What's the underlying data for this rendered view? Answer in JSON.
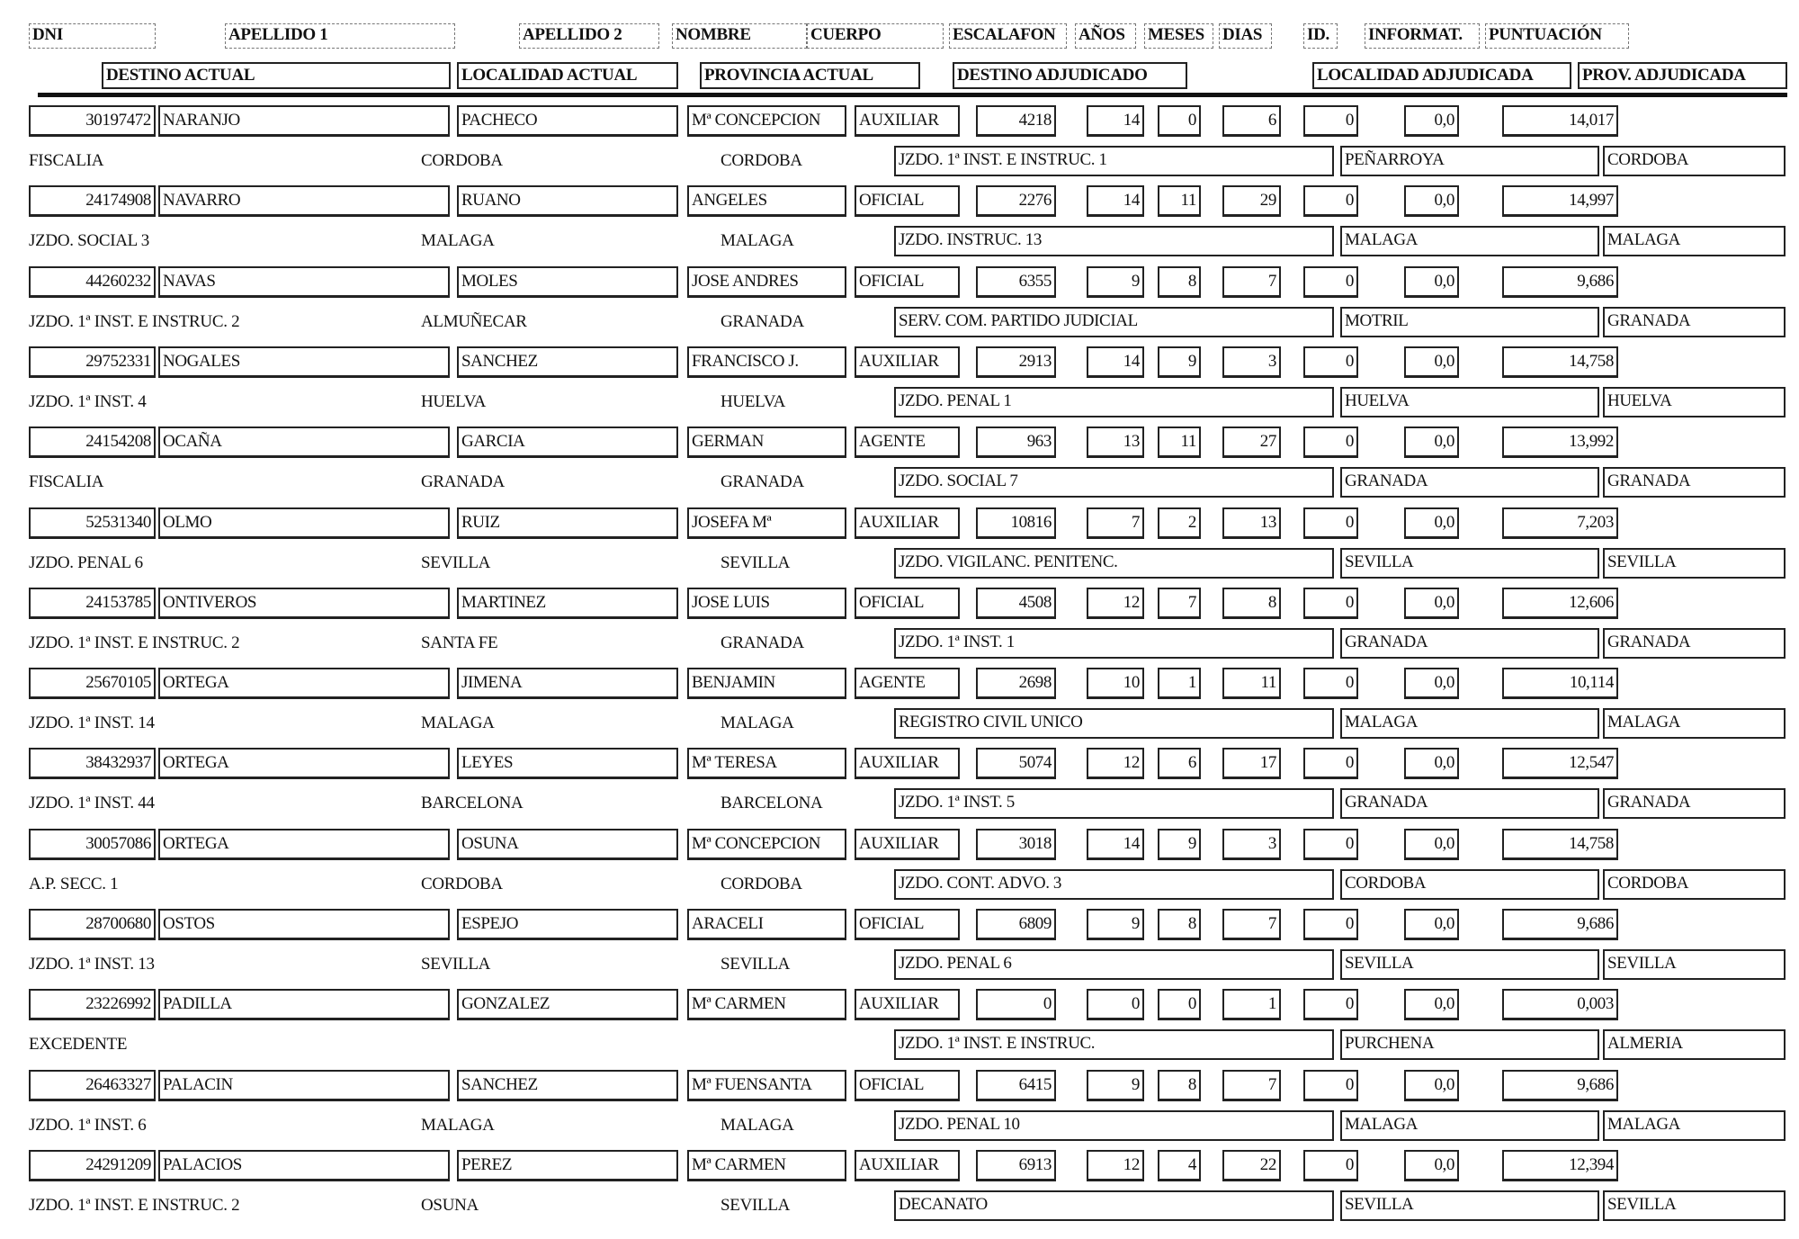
{
  "headers": {
    "row1": {
      "dni": "DNI",
      "apellido1": "APELLIDO 1",
      "apellido2": "APELLIDO 2",
      "nombre": "NOMBRE",
      "cuerpo": "CUERPO",
      "escalafon": "ESCALAFON",
      "anos": "AÑOS",
      "meses": "MESES",
      "dias": "DIAS",
      "id": "ID.",
      "informat": "INFORMAT.",
      "puntuacion": "PUNTUACIÓN"
    },
    "row2": {
      "destino_actual": "DESTINO ACTUAL",
      "localidad_actual": "LOCALIDAD ACTUAL",
      "provincia_actual": "PROVINCIA ACTUAL",
      "destino_adjudicado": "DESTINO ADJUDICADO",
      "localidad_adjudicada": "LOCALIDAD ADJUDICADA",
      "prov_adjudicada": "PROV. ADJUDICADA"
    }
  },
  "records": [
    {
      "dni": "30197472",
      "apellido1": "NARANJO",
      "apellido2": "PACHECO",
      "nombre": "Mª CONCEPCION",
      "cuerpo": "AUXILIAR",
      "escalafon": "4218",
      "anos": "14",
      "meses": "0",
      "dias": "6",
      "id": "0",
      "informat": "0,0",
      "puntuacion": "14,017",
      "destino_actual": "FISCALIA",
      "localidad_actual": "CORDOBA",
      "provincia_actual": "CORDOBA",
      "destino_adjudicado": "JZDO. 1ª INST. E INSTRUC. 1",
      "localidad_adjudicada": "PEÑARROYA",
      "prov_adjudicada": "CORDOBA"
    },
    {
      "dni": "24174908",
      "apellido1": "NAVARRO",
      "apellido2": "RUANO",
      "nombre": "ANGELES",
      "cuerpo": "OFICIAL",
      "escalafon": "2276",
      "anos": "14",
      "meses": "11",
      "dias": "29",
      "id": "0",
      "informat": "0,0",
      "puntuacion": "14,997",
      "destino_actual": "JZDO. SOCIAL 3",
      "localidad_actual": "MALAGA",
      "provincia_actual": "MALAGA",
      "destino_adjudicado": "JZDO. INSTRUC. 13",
      "localidad_adjudicada": "MALAGA",
      "prov_adjudicada": "MALAGA"
    },
    {
      "dni": "44260232",
      "apellido1": "NAVAS",
      "apellido2": "MOLES",
      "nombre": "JOSE ANDRES",
      "cuerpo": "OFICIAL",
      "escalafon": "6355",
      "anos": "9",
      "meses": "8",
      "dias": "7",
      "id": "0",
      "informat": "0,0",
      "puntuacion": "9,686",
      "destino_actual": "JZDO. 1ª INST. E INSTRUC. 2",
      "localidad_actual": "ALMUÑECAR",
      "provincia_actual": "GRANADA",
      "destino_adjudicado": "SERV. COM. PARTIDO JUDICIAL",
      "localidad_adjudicada": "MOTRIL",
      "prov_adjudicada": "GRANADA"
    },
    {
      "dni": "29752331",
      "apellido1": "NOGALES",
      "apellido2": "SANCHEZ",
      "nombre": "FRANCISCO J.",
      "cuerpo": "AUXILIAR",
      "escalafon": "2913",
      "anos": "14",
      "meses": "9",
      "dias": "3",
      "id": "0",
      "informat": "0,0",
      "puntuacion": "14,758",
      "destino_actual": "JZDO. 1ª  INST. 4",
      "localidad_actual": "HUELVA",
      "provincia_actual": "HUELVA",
      "destino_adjudicado": "JZDO. PENAL 1",
      "localidad_adjudicada": "HUELVA",
      "prov_adjudicada": "HUELVA"
    },
    {
      "dni": "24154208",
      "apellido1": "OCAÑA",
      "apellido2": "GARCIA",
      "nombre": "GERMAN",
      "cuerpo": "AGENTE",
      "escalafon": "963",
      "anos": "13",
      "meses": "11",
      "dias": "27",
      "id": "0",
      "informat": "0,0",
      "puntuacion": "13,992",
      "destino_actual": "FISCALIA",
      "localidad_actual": "GRANADA",
      "provincia_actual": "GRANADA",
      "destino_adjudicado": "JZDO. SOCIAL 7",
      "localidad_adjudicada": "GRANADA",
      "prov_adjudicada": "GRANADA"
    },
    {
      "dni": "52531340",
      "apellido1": "OLMO",
      "apellido2": "RUIZ",
      "nombre": "JOSEFA Mª",
      "cuerpo": "AUXILIAR",
      "escalafon": "10816",
      "anos": "7",
      "meses": "2",
      "dias": "13",
      "id": "0",
      "informat": "0,0",
      "puntuacion": "7,203",
      "destino_actual": "JZDO. PENAL 6",
      "localidad_actual": "SEVILLA",
      "provincia_actual": "SEVILLA",
      "destino_adjudicado": "JZDO. VIGILANC. PENITENC.",
      "localidad_adjudicada": "SEVILLA",
      "prov_adjudicada": "SEVILLA"
    },
    {
      "dni": "24153785",
      "apellido1": "ONTIVEROS",
      "apellido2": "MARTINEZ",
      "nombre": "JOSE LUIS",
      "cuerpo": "OFICIAL",
      "escalafon": "4508",
      "anos": "12",
      "meses": "7",
      "dias": "8",
      "id": "0",
      "informat": "0,0",
      "puntuacion": "12,606",
      "destino_actual": "JZDO. 1ª INST. E INSTRUC. 2",
      "localidad_actual": "SANTA FE",
      "provincia_actual": "GRANADA",
      "destino_adjudicado": "JZDO. 1ª INST. 1",
      "localidad_adjudicada": "GRANADA",
      "prov_adjudicada": "GRANADA"
    },
    {
      "dni": "25670105",
      "apellido1": "ORTEGA",
      "apellido2": "JIMENA",
      "nombre": "BENJAMIN",
      "cuerpo": "AGENTE",
      "escalafon": "2698",
      "anos": "10",
      "meses": "1",
      "dias": "11",
      "id": "0",
      "informat": "0,0",
      "puntuacion": "10,114",
      "destino_actual": "JZDO. 1ª  INST. 14",
      "localidad_actual": "MALAGA",
      "provincia_actual": "MALAGA",
      "destino_adjudicado": "REGISTRO CIVIL UNICO",
      "localidad_adjudicada": "MALAGA",
      "prov_adjudicada": "MALAGA"
    },
    {
      "dni": "38432937",
      "apellido1": "ORTEGA",
      "apellido2": "LEYES",
      "nombre": "Mª TERESA",
      "cuerpo": "AUXILIAR",
      "escalafon": "5074",
      "anos": "12",
      "meses": "6",
      "dias": "17",
      "id": "0",
      "informat": "0,0",
      "puntuacion": "12,547",
      "destino_actual": "JZDO. 1ª  INST. 44",
      "localidad_actual": "BARCELONA",
      "provincia_actual": "BARCELONA",
      "destino_adjudicado": "JZDO. 1ª INST. 5",
      "localidad_adjudicada": "GRANADA",
      "prov_adjudicada": "GRANADA"
    },
    {
      "dni": "30057086",
      "apellido1": "ORTEGA",
      "apellido2": "OSUNA",
      "nombre": "Mª CONCEPCION",
      "cuerpo": "AUXILIAR",
      "escalafon": "3018",
      "anos": "14",
      "meses": "9",
      "dias": "3",
      "id": "0",
      "informat": "0,0",
      "puntuacion": "14,758",
      "destino_actual": "A.P. SECC. 1",
      "localidad_actual": "CORDOBA",
      "provincia_actual": "CORDOBA",
      "destino_adjudicado": "JZDO. CONT. ADVO. 3",
      "localidad_adjudicada": "CORDOBA",
      "prov_adjudicada": "CORDOBA"
    },
    {
      "dni": "28700680",
      "apellido1": "OSTOS",
      "apellido2": "ESPEJO",
      "nombre": "ARACELI",
      "cuerpo": "OFICIAL",
      "escalafon": "6809",
      "anos": "9",
      "meses": "8",
      "dias": "7",
      "id": "0",
      "informat": "0,0",
      "puntuacion": "9,686",
      "destino_actual": "JZDO. 1ª  INST. 13",
      "localidad_actual": "SEVILLA",
      "provincia_actual": "SEVILLA",
      "destino_adjudicado": "JZDO. PENAL 6",
      "localidad_adjudicada": "SEVILLA",
      "prov_adjudicada": "SEVILLA"
    },
    {
      "dni": "23226992",
      "apellido1": "PADILLA",
      "apellido2": "GONZALEZ",
      "nombre": "Mª CARMEN",
      "cuerpo": "AUXILIAR",
      "escalafon": "0",
      "anos": "0",
      "meses": "0",
      "dias": "1",
      "id": "0",
      "informat": "0,0",
      "puntuacion": "0,003",
      "destino_actual": "EXCEDENTE",
      "localidad_actual": "",
      "provincia_actual": "",
      "destino_adjudicado": "JZDO. 1ª INST. E INSTRUC.",
      "localidad_adjudicada": "PURCHENA",
      "prov_adjudicada": "ALMERIA"
    },
    {
      "dni": "26463327",
      "apellido1": "PALACIN",
      "apellido2": "SANCHEZ",
      "nombre": "Mª FUENSANTA",
      "cuerpo": "OFICIAL",
      "escalafon": "6415",
      "anos": "9",
      "meses": "8",
      "dias": "7",
      "id": "0",
      "informat": "0,0",
      "puntuacion": "9,686",
      "destino_actual": "JZDO. 1ª  INST. 6",
      "localidad_actual": "MALAGA",
      "provincia_actual": "MALAGA",
      "destino_adjudicado": "JZDO. PENAL 10",
      "localidad_adjudicada": "MALAGA",
      "prov_adjudicada": "MALAGA"
    },
    {
      "dni": "24291209",
      "apellido1": "PALACIOS",
      "apellido2": "PEREZ",
      "nombre": "Mª CARMEN",
      "cuerpo": "AUXILIAR",
      "escalafon": "6913",
      "anos": "12",
      "meses": "4",
      "dias": "22",
      "id": "0",
      "informat": "0,0",
      "puntuacion": "12,394",
      "destino_actual": "JZDO. 1ª INST. E INSTRUC. 2",
      "localidad_actual": "OSUNA",
      "provincia_actual": "SEVILLA",
      "destino_adjudicado": "DECANATO",
      "localidad_adjudicada": "SEVILLA",
      "prov_adjudicada": "SEVILLA"
    }
  ]
}
